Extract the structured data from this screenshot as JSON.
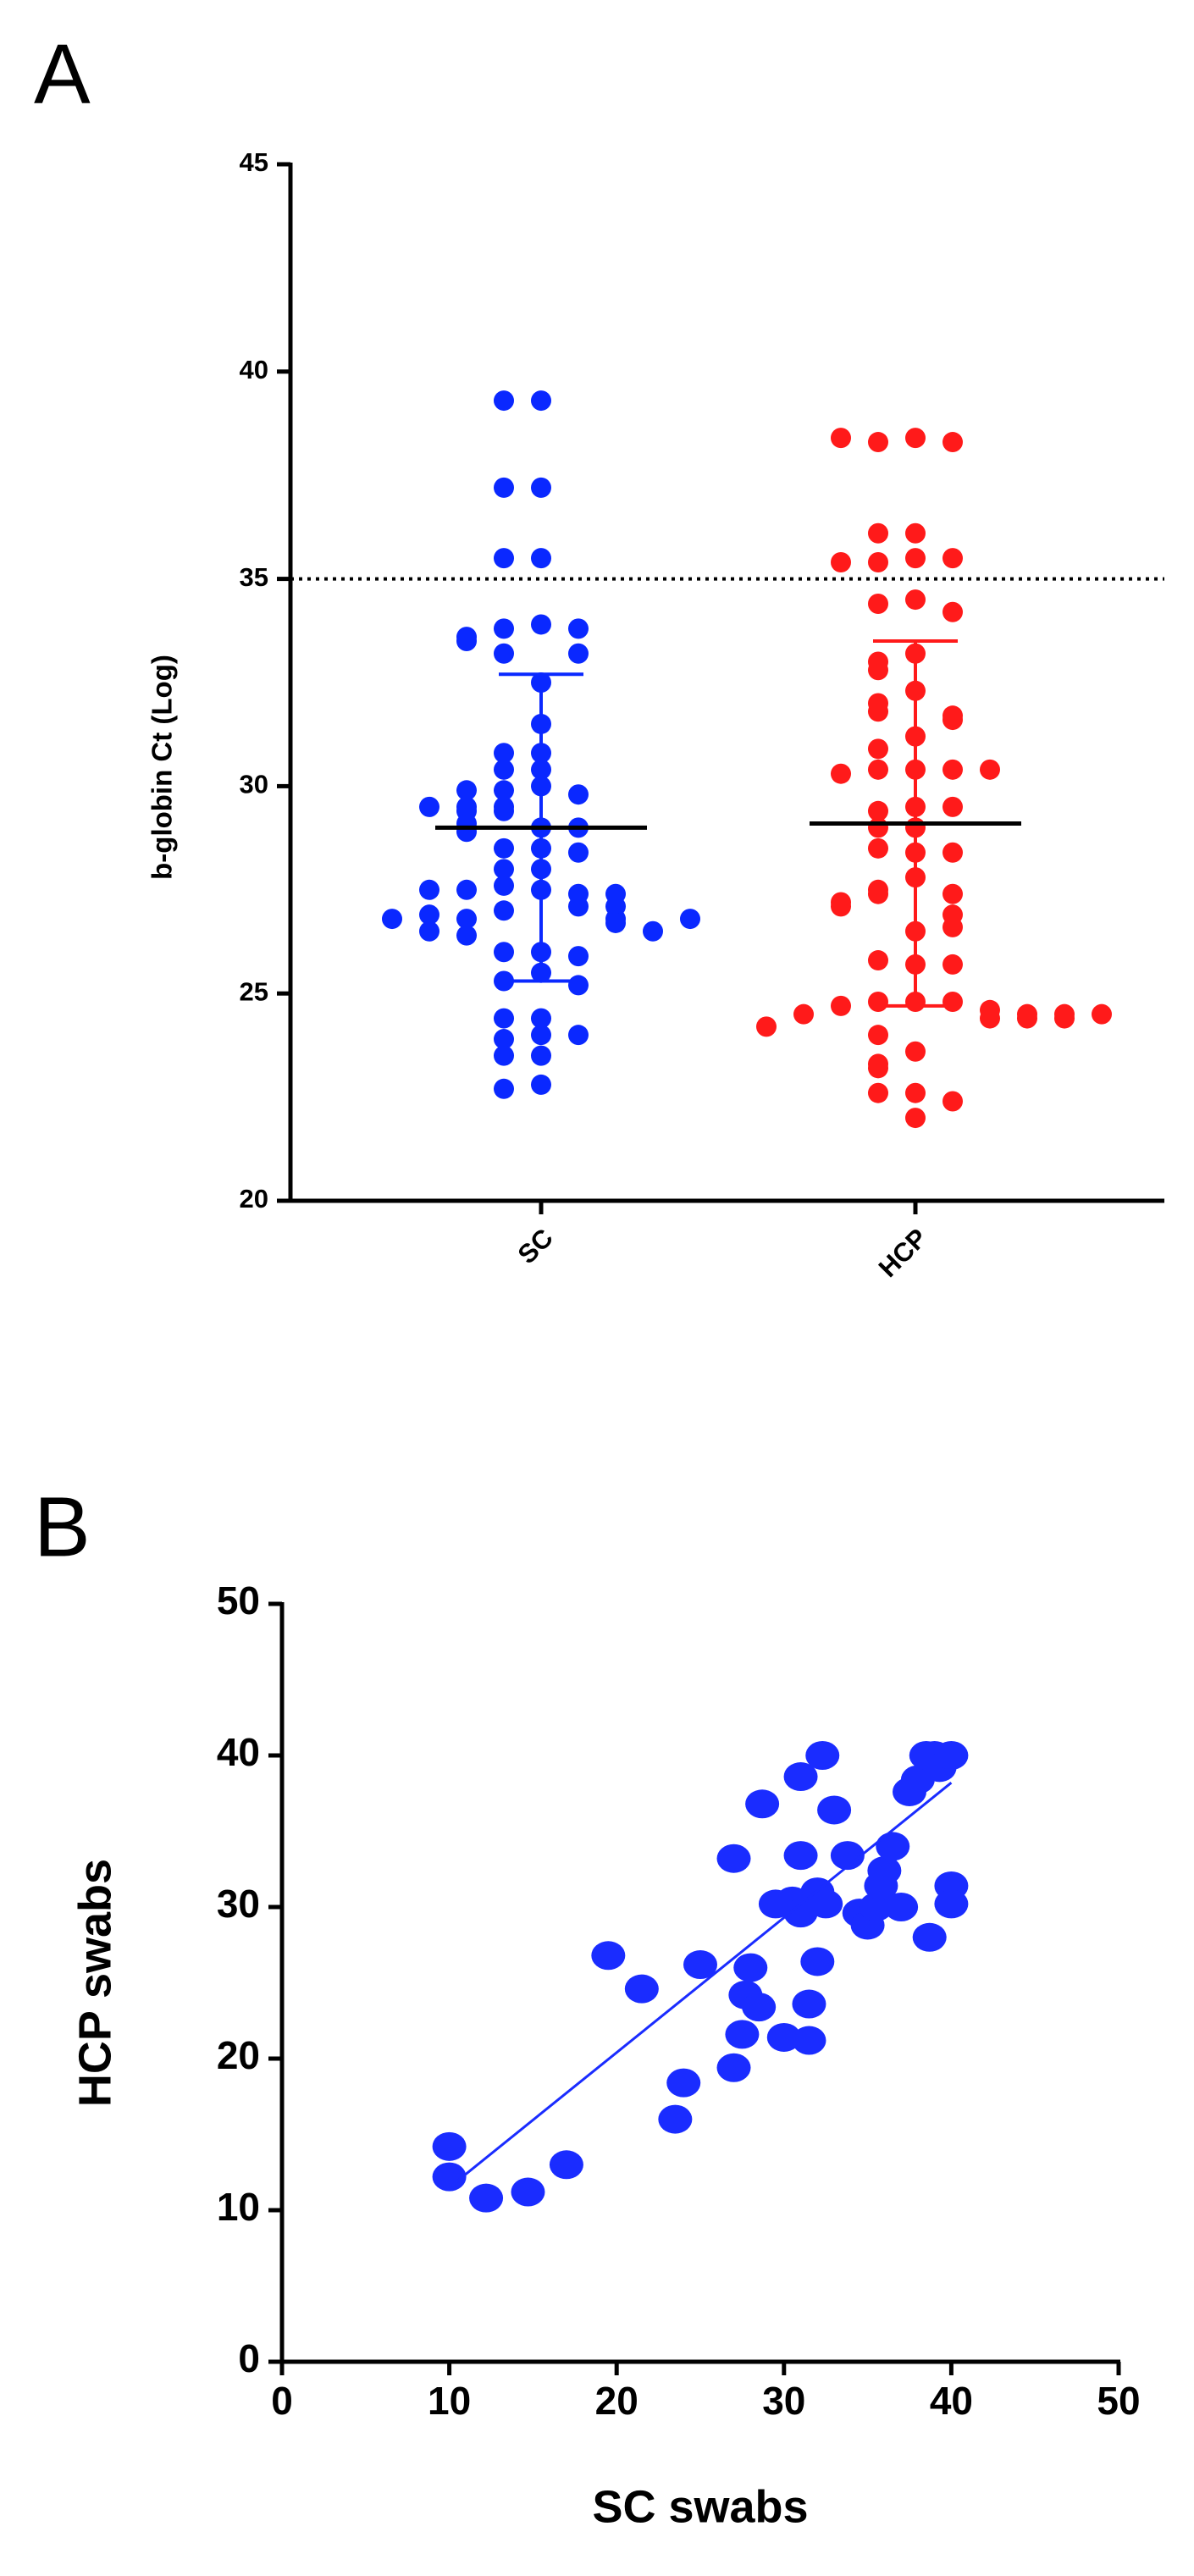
{
  "chart_data": [
    {
      "type": "dot",
      "title": "A",
      "ylabel": "b-globin Ct (Log)",
      "categories": [
        "SC",
        "HCP"
      ],
      "ylim": [
        20,
        45
      ],
      "yticks": [
        20,
        25,
        30,
        35,
        40,
        45
      ],
      "hline": 35,
      "groups": [
        {
          "color": "#0a28ff",
          "mean": 29.0,
          "sd": 3.7,
          "values": [
            39.3,
            39.3,
            37.2,
            37.2,
            35.5,
            35.5,
            33.9,
            33.8,
            33.8,
            33.6,
            33.5,
            33.2,
            33.2,
            32.5,
            31.5,
            30.8,
            30.8,
            30.4,
            30.4,
            30.0,
            29.9,
            29.8,
            29.9,
            29.5,
            29.4,
            29.5,
            29.4,
            29.5,
            29.0,
            29.1,
            29.0,
            28.9,
            28.5,
            28.5,
            28.4,
            28.0,
            28.0,
            27.5,
            27.6,
            27.4,
            27.5,
            27.4,
            27.5,
            27.1,
            27.0,
            27.1,
            26.8,
            26.8,
            26.9,
            26.7,
            26.8,
            26.8,
            26.5,
            26.5,
            26.4,
            26.0,
            26.0,
            25.9,
            25.5,
            25.3,
            25.2,
            24.4,
            24.4,
            24.0,
            23.9,
            24.0,
            23.5,
            23.5,
            22.8,
            22.7
          ]
        },
        {
          "color": "#ff1a1a",
          "mean": 29.1,
          "sd": 4.4,
          "values": [
            38.4,
            38.3,
            38.3,
            38.4,
            36.1,
            36.1,
            35.5,
            35.4,
            35.5,
            35.4,
            34.5,
            34.4,
            34.2,
            33.2,
            33.0,
            32.8,
            32.3,
            32.0,
            31.8,
            31.7,
            31.6,
            31.2,
            30.9,
            30.4,
            30.4,
            30.4,
            30.3,
            30.4,
            29.5,
            29.4,
            29.5,
            29.0,
            29.0,
            28.4,
            28.5,
            28.4,
            27.8,
            27.5,
            27.4,
            27.4,
            27.2,
            27.1,
            26.9,
            26.5,
            26.6,
            25.7,
            25.8,
            25.7,
            24.8,
            24.8,
            24.8,
            24.7,
            24.6,
            24.5,
            24.5,
            24.4,
            24.5,
            24.4,
            24.5,
            24.4,
            24.2,
            24.0,
            23.6,
            23.3,
            23.2,
            22.6,
            22.6,
            22.4,
            22.0
          ]
        }
      ]
    },
    {
      "type": "scatter",
      "title": "B",
      "xlabel": "SC swabs",
      "ylabel": "HCP swabs",
      "color": "#1a2cff",
      "xlim": [
        0,
        50
      ],
      "xticks": [
        0,
        10,
        20,
        30,
        40,
        50
      ],
      "ylim": [
        0,
        50
      ],
      "yticks": [
        0,
        10,
        20,
        30,
        40,
        50
      ],
      "x": [
        10,
        10,
        12.2,
        14.7,
        17,
        19.5,
        21.5,
        23.5,
        24,
        25,
        27,
        27,
        27.5,
        27.7,
        28,
        28.5,
        28.7,
        29.5,
        30,
        30.5,
        31,
        31,
        31,
        31.5,
        31.5,
        32,
        32,
        32.3,
        32.5,
        33,
        33.8,
        34.5,
        35,
        35.5,
        35.8,
        36,
        36.5,
        37,
        37.5,
        38,
        38.5,
        38.7,
        39,
        39.3,
        40,
        40,
        40
      ],
      "y": [
        14.2,
        12.2,
        10.8,
        11.2,
        13,
        26.8,
        24.6,
        16,
        18.4,
        26.2,
        19.4,
        33.2,
        21.6,
        24.2,
        26,
        23.4,
        36.8,
        30.2,
        21.4,
        30.4,
        33.4,
        29.6,
        38.6,
        23.6,
        21.2,
        26.4,
        31,
        40,
        30.2,
        36.4,
        33.4,
        29.6,
        28.8,
        30,
        31.4,
        32.4,
        34,
        30,
        37.6,
        38.4,
        40,
        28,
        40,
        39.2,
        40,
        31.4,
        30.2
      ],
      "fit": {
        "x": [
          10,
          40
        ],
        "y": [
          11.5,
          38.2
        ]
      }
    }
  ]
}
